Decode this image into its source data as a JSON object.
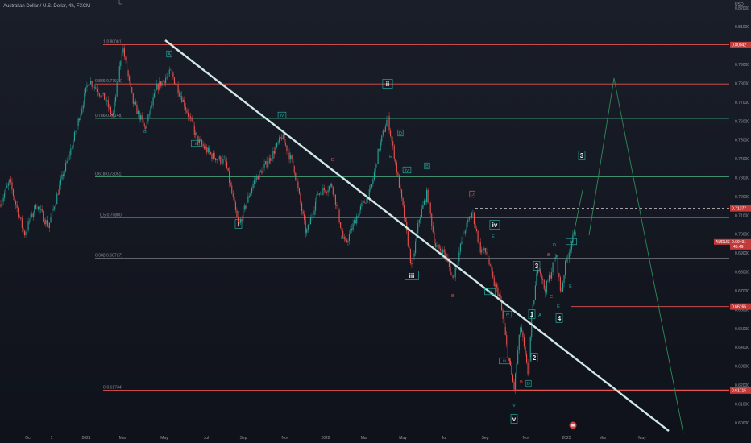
{
  "header": {
    "symbol": "Australian Dollar / U.S. Dollar, 4h, FXCM"
  },
  "colors": {
    "bg": "#131722",
    "up": "#26a69a",
    "down": "#ef5350",
    "trend": "#cfe8e6",
    "fib_red": "#e45252",
    "fib_green": "#3d8f6e",
    "fib_grey": "#7a7d86"
  },
  "chart_data": {
    "type": "candlestick",
    "y_unit": "USD",
    "ylim": [
      0.5985,
      0.8205
    ],
    "x_ticks": [
      "Oct",
      "1",
      "2021",
      "Mar",
      "May",
      "Jul",
      "Sep",
      "Nov",
      "2022",
      "Mar",
      "May",
      "Jul",
      "Sep",
      "Nov",
      "2023",
      "Mar",
      "May"
    ],
    "y_ticks": [
      "0.82000",
      "0.81000",
      "0.80000",
      "0.79000",
      "0.78000",
      "0.77000",
      "0.76000",
      "0.75000",
      "0.74000",
      "0.73000",
      "0.72000",
      "0.71000",
      "0.70000",
      "0.69000",
      "0.68000",
      "0.67000",
      "0.66000",
      "0.65000",
      "0.64000",
      "0.63000",
      "0.62000",
      "0.61000",
      "0.60000"
    ],
    "fib_levels": [
      {
        "label": "1(0.80061)",
        "value": 0.80061,
        "color": "#e45252"
      },
      {
        "label": "0.886(0.77975)",
        "value": 0.77975,
        "color": "#e45252"
      },
      {
        "label": "0.786(0.76148)",
        "value": 0.76148,
        "color": "#3d8f6e"
      },
      {
        "label": "0.618(0.73051)",
        "value": 0.73051,
        "color": "#3d8f6e"
      },
      {
        "label": "0.5(0.70880)",
        "value": 0.7088,
        "color": "#3d8f6e"
      },
      {
        "label": "0.382(0.68727)",
        "value": 0.68727,
        "color": "#7a7d86"
      },
      {
        "label": "0(0.61734)",
        "value": 0.61734,
        "color": "#e45252"
      }
    ],
    "price_tags": [
      {
        "text": "0.80042",
        "value": 0.80042,
        "color": "#c23b3b"
      },
      {
        "text": "0.71377",
        "value": 0.71377,
        "color": "#c23b3b"
      },
      {
        "text": "0.66165",
        "value": 0.66165,
        "color": "#c23b3b"
      },
      {
        "text": "0.61715",
        "value": 0.61715,
        "color": "#c23b3b"
      }
    ],
    "current_tag": {
      "symbol": "AUDUSD",
      "price": "0.69491",
      "countdown": "46:49",
      "value": 0.69491
    },
    "dashed_level": 0.71377,
    "support_level": 0.66165,
    "wave_labels": [
      {
        "t": "A",
        "x": 210,
        "y": 67,
        "c": "#26a69a",
        "box": true
      },
      {
        "t": "B",
        "x": 180,
        "y": 163,
        "c": "#26a69a",
        "box": false
      },
      {
        "t": "i",
        "x": 296,
        "y": 278,
        "c": "#26a69a",
        "box": true,
        "big": true
      },
      {
        "t": "v",
        "x": 296,
        "y": 263,
        "c": "#26a69a",
        "box": false
      },
      {
        "t": "iii",
        "x": 244,
        "y": 178,
        "c": "#26a69a",
        "box": true
      },
      {
        "t": "iv",
        "x": 350,
        "y": 143,
        "c": "#26a69a",
        "box": true
      },
      {
        "t": "B",
        "x": 380,
        "y": 286,
        "c": "#ef5350",
        "box": false
      },
      {
        "t": "B",
        "x": 425,
        "y": 295,
        "c": "#26a69a",
        "box": false
      },
      {
        "t": "D",
        "x": 413,
        "y": 198,
        "c": "#ef5350",
        "box": false
      },
      {
        "t": "ii",
        "x": 481,
        "y": 104,
        "c": "#26a69a",
        "box": true,
        "big": true
      },
      {
        "t": "D",
        "x": 497,
        "y": 165,
        "c": "#26a69a",
        "box": true
      },
      {
        "t": "E",
        "x": 485,
        "y": 194,
        "c": "#26a69a",
        "box": false
      },
      {
        "t": "iv",
        "x": 505,
        "y": 211,
        "c": "#26a69a",
        "box": true
      },
      {
        "t": "B",
        "x": 530,
        "y": 206,
        "c": "#26a69a",
        "box": true
      },
      {
        "t": "iii",
        "x": 511,
        "y": 342,
        "c": "#26a69a",
        "box": true,
        "big": true
      },
      {
        "t": "D",
        "x": 586,
        "y": 241,
        "c": "#ef5350",
        "box": true
      },
      {
        "t": "B",
        "x": 562,
        "y": 367,
        "c": "#ef5350",
        "box": false
      },
      {
        "t": "iv",
        "x": 614,
        "y": 279,
        "c": "#26a69a",
        "box": true,
        "big": true
      },
      {
        "t": "E",
        "x": 612,
        "y": 293,
        "c": "#26a69a",
        "box": false
      },
      {
        "t": "iii",
        "x": 608,
        "y": 362,
        "c": "#26a69a",
        "box": true
      },
      {
        "t": "iv",
        "x": 630,
        "y": 390,
        "c": "#26a69a",
        "box": true
      },
      {
        "t": "iii",
        "x": 626,
        "y": 448,
        "c": "#26a69a",
        "box": true
      },
      {
        "t": "B",
        "x": 647,
        "y": 474,
        "c": "#ef5350",
        "box": false
      },
      {
        "t": "D",
        "x": 656,
        "y": 476,
        "c": "#26a69a",
        "box": true
      },
      {
        "t": "v",
        "x": 638,
        "y": 503,
        "c": "#26a69a",
        "box": false
      },
      {
        "t": "v",
        "x": 638,
        "y": 520,
        "c": "#26a69a",
        "box": true,
        "big": true
      },
      {
        "t": "1",
        "x": 660,
        "y": 390,
        "c": "#26a69a",
        "box": true,
        "big": true
      },
      {
        "t": "2",
        "x": 663,
        "y": 444,
        "c": "#26a69a",
        "box": true,
        "big": true
      },
      {
        "t": "3",
        "x": 666,
        "y": 330,
        "c": "#26a69a",
        "box": true,
        "big": true
      },
      {
        "t": "4",
        "x": 694,
        "y": 395,
        "c": "#26a69a",
        "box": true,
        "big": true
      },
      {
        "t": "A",
        "x": 670,
        "y": 391,
        "c": "#26a69a",
        "box": false
      },
      {
        "t": "C",
        "x": 684,
        "y": 368,
        "c": "#ef5350",
        "box": false
      },
      {
        "t": "B",
        "x": 681,
        "y": 316,
        "c": "#ef5350",
        "box": false
      },
      {
        "t": "D",
        "x": 688,
        "y": 304,
        "c": "#26a69a",
        "box": false
      },
      {
        "t": "E",
        "x": 693,
        "y": 380,
        "c": "#26a69a",
        "box": false
      },
      {
        "t": "E",
        "x": 708,
        "y": 355,
        "c": "#26a69a",
        "box": false
      },
      {
        "t": "iii",
        "x": 709,
        "y": 300,
        "c": "#26a69a",
        "box": true
      },
      {
        "t": "3",
        "x": 722,
        "y": 193,
        "c": "#26a69a",
        "box": true,
        "big": true
      }
    ]
  }
}
